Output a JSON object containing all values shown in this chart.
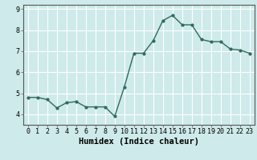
{
  "x": [
    0,
    1,
    2,
    3,
    4,
    5,
    6,
    7,
    8,
    9,
    10,
    11,
    12,
    13,
    14,
    15,
    16,
    17,
    18,
    19,
    20,
    21,
    22,
    23
  ],
  "y": [
    4.8,
    4.8,
    4.7,
    4.3,
    4.55,
    4.6,
    4.35,
    4.35,
    4.35,
    3.9,
    5.3,
    6.9,
    6.9,
    7.5,
    8.45,
    8.7,
    8.25,
    8.25,
    7.55,
    7.45,
    7.45,
    7.1,
    7.05,
    6.9
  ],
  "line_color": "#2e6b5e",
  "marker": "o",
  "markersize": 2.0,
  "linewidth": 1.0,
  "xlabel": "Humidex (Indice chaleur)",
  "ylim": [
    3.5,
    9.2
  ],
  "xlim": [
    -0.5,
    23.5
  ],
  "yticks": [
    4,
    5,
    6,
    7,
    8,
    9
  ],
  "xticks": [
    0,
    1,
    2,
    3,
    4,
    5,
    6,
    7,
    8,
    9,
    10,
    11,
    12,
    13,
    14,
    15,
    16,
    17,
    18,
    19,
    20,
    21,
    22,
    23
  ],
  "bg_color": "#ceeaea",
  "grid_color": "#ffffff",
  "xlabel_fontsize": 7.5,
  "tick_fontsize": 6.0,
  "spine_color": "#555555"
}
